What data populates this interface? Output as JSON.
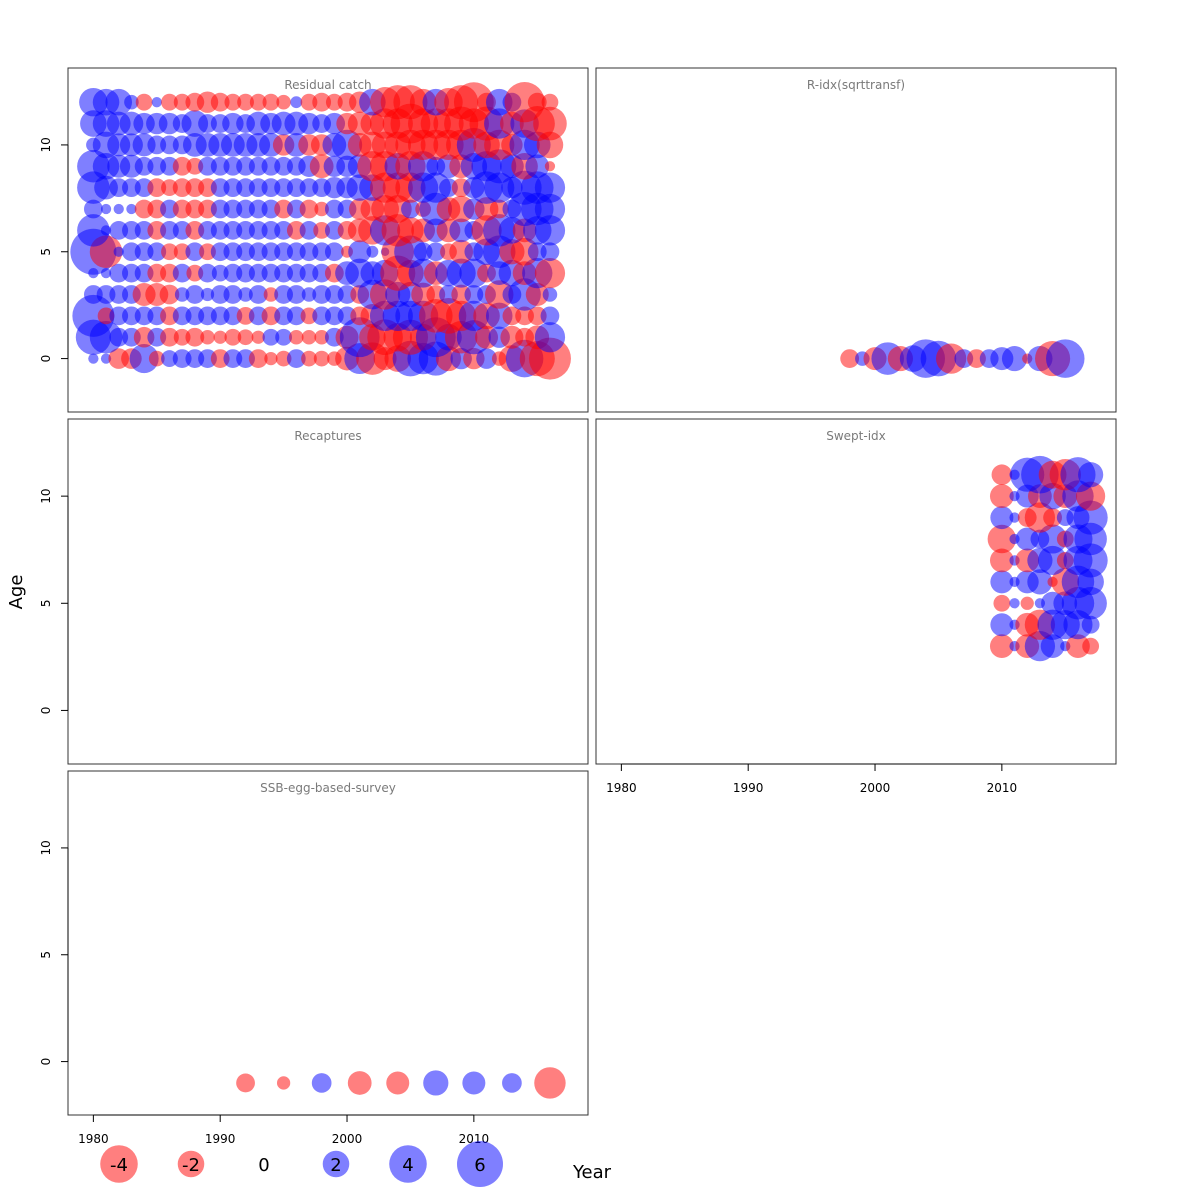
{
  "chart_data": {
    "type": "scatter",
    "style": "bubble",
    "xlabel": "Year",
    "ylabel": "Age",
    "xlim": [
      1978,
      2019
    ],
    "ylim": [
      -2.5,
      13.6
    ],
    "x_ticks": [
      1980,
      1990,
      2000,
      2010
    ],
    "y_ticks": [
      0,
      5,
      10
    ],
    "colors": {
      "negative": "#ff0000",
      "positive": "#0000ff",
      "alpha": 0.5
    },
    "bubble_scale": {
      "max_abs_residual": 6,
      "max_radius_px": 23
    },
    "legend": {
      "placement": "bottom",
      "entries": [
        {
          "label": "-4",
          "value": -4
        },
        {
          "label": "-2",
          "value": -2
        },
        {
          "label": "0",
          "value": 0
        },
        {
          "label": "2",
          "value": 2
        },
        {
          "label": "4",
          "value": 4
        },
        {
          "label": "6",
          "value": 6
        }
      ]
    },
    "panels": [
      {
        "title": "Residual catch",
        "x": [
          1980,
          1981,
          1982,
          1983,
          1984,
          1985,
          1986,
          1987,
          1988,
          1989,
          1990,
          1991,
          1992,
          1993,
          1994,
          1995,
          1996,
          1997,
          1998,
          1999,
          2000,
          2001,
          2002,
          2003,
          2004,
          2005,
          2006,
          2007,
          2008,
          2009,
          2010,
          2011,
          2012,
          2013,
          2014,
          2015,
          2016
        ],
        "ages": [
          0,
          1,
          2,
          3,
          4,
          5,
          6,
          7,
          8,
          9,
          10,
          11,
          12
        ],
        "residuals": [
          [
            0.3,
            0.3,
            -1.2,
            -1.2,
            2.4,
            -0.7,
            0.8,
            1.0,
            1.0,
            1.0,
            -1.0,
            1.0,
            1.0,
            -1.0,
            -0.5,
            -0.7,
            1.0,
            -0.7,
            -0.7,
            -0.6,
            -1.6,
            2.7,
            -3.0,
            -1.5,
            -2.0,
            3.6,
            2.8,
            3.3,
            -1.8,
            1.3,
            -1.3,
            1.2,
            -0.6,
            -2.0,
            4.0,
            -3.5,
            -5.0
          ],
          [
            3.5,
            3.0,
            1.0,
            1.0,
            -1.2,
            1.0,
            -1.0,
            -0.8,
            -1.0,
            -0.6,
            -0.5,
            -0.8,
            -0.7,
            -0.5,
            0.8,
            0.8,
            -0.6,
            -0.6,
            -0.6,
            1.0,
            -1.5,
            4.5,
            -2.0,
            -3.6,
            -2.3,
            -3.5,
            -2.0,
            4.5,
            2.0,
            -3.0,
            3.3,
            -1.5,
            1.3,
            -1.5,
            -1.0,
            -1.6,
            2.6
          ],
          [
            5.0,
            -0.8,
            1.0,
            1.0,
            1.0,
            1.0,
            -1.0,
            1.0,
            1.0,
            1.0,
            1.0,
            1.0,
            -0.9,
            1.0,
            -1.0,
            1.0,
            1.0,
            -0.8,
            1.0,
            1.0,
            1.0,
            -1.0,
            -1.6,
            2.6,
            2.6,
            2.6,
            2.6,
            -3.2,
            -3.6,
            -2.6,
            2.6,
            -2.0,
            2.0,
            -1.0,
            -1.0,
            -1.0,
            1.0
          ],
          [
            1.0,
            1.0,
            1.0,
            1.0,
            -1.5,
            -1.5,
            -1.1,
            0.6,
            1.0,
            0.5,
            1.0,
            1.0,
            0.6,
            1.0,
            -0.6,
            1.0,
            1.0,
            0.6,
            1.0,
            1.0,
            1.0,
            -1.0,
            2.5,
            -2.6,
            1.8,
            1.8,
            -1.6,
            -1.0,
            1.0,
            -1.1,
            1.0,
            1.0,
            -2.3,
            1.0,
            3.0,
            -1.5,
            0.6
          ],
          [
            0.3,
            0.3,
            1.0,
            1.0,
            1.0,
            -1.0,
            -1.0,
            1.0,
            -0.8,
            1.0,
            0.8,
            1.0,
            1.0,
            1.0,
            1.0,
            1.0,
            1.0,
            1.0,
            1.0,
            -1.0,
            1.6,
            2.4,
            1.6,
            2.0,
            -3.5,
            -2.0,
            2.4,
            -1.6,
            2.0,
            2.4,
            2.4,
            -1.0,
            1.6,
            2.0,
            -1.6,
            2.6,
            -2.6
          ],
          [
            6.0,
            -3.0,
            0.3,
            1.0,
            1.0,
            1.0,
            -0.8,
            -0.8,
            1.0,
            -0.8,
            1.0,
            1.0,
            1.0,
            1.0,
            1.0,
            1.0,
            1.0,
            1.0,
            1.0,
            1.0,
            -0.4,
            1.5,
            0.4,
            0.2,
            -3.0,
            3.0,
            1.0,
            1.0,
            -0.8,
            -1.6,
            1.0,
            2.0,
            3.0,
            -1.8,
            -2.2,
            1.0,
            1.0
          ],
          [
            3.0,
            0.3,
            1.0,
            1.0,
            1.0,
            -1.0,
            1.0,
            1.0,
            -1.0,
            1.0,
            1.0,
            1.0,
            1.0,
            1.0,
            1.0,
            1.0,
            -1.0,
            1.0,
            -0.8,
            1.0,
            -1.0,
            -1.6,
            -2.3,
            2.6,
            -3.0,
            -2.0,
            -1.6,
            1.6,
            -1.6,
            1.6,
            1.0,
            -2.6,
            3.0,
            2.0,
            -1.6,
            2.3,
            2.6
          ],
          [
            1.0,
            0.3,
            0.3,
            0.3,
            -1.0,
            -1.0,
            1.0,
            -1.0,
            -1.0,
            -1.0,
            1.0,
            1.0,
            1.0,
            1.0,
            1.0,
            -1.0,
            1.0,
            -1.0,
            -0.6,
            1.0,
            1.0,
            -1.3,
            -1.6,
            -2.2,
            -2.2,
            1.0,
            -0.7,
            3.0,
            -1.6,
            -2.0,
            1.3,
            -1.6,
            -1.0,
            1.0,
            3.3,
            3.0,
            2.6
          ],
          [
            3.0,
            1.6,
            1.0,
            1.0,
            1.0,
            -1.0,
            -0.8,
            -1.0,
            -1.0,
            -1.0,
            1.0,
            1.0,
            1.0,
            1.0,
            1.0,
            1.0,
            1.0,
            1.0,
            1.0,
            1.3,
            1.3,
            2.0,
            2.0,
            -2.6,
            -2.6,
            -2.6,
            2.6,
            2.6,
            1.0,
            -1.0,
            1.3,
            3.0,
            2.6,
            1.3,
            3.3,
            3.0,
            2.6
          ],
          [
            3.0,
            2.0,
            1.5,
            1.5,
            1.0,
            1.0,
            1.0,
            -1.0,
            -0.8,
            1.0,
            1.0,
            1.0,
            1.0,
            1.0,
            1.0,
            1.0,
            1.0,
            1.3,
            -1.6,
            1.3,
            1.3,
            1.6,
            -2.6,
            -2.6,
            2.0,
            -2.6,
            2.6,
            1.0,
            1.6,
            -1.6,
            2.0,
            2.6,
            3.3,
            1.6,
            -2.0,
            1.6,
            -0.3
          ],
          [
            0.6,
            2.0,
            1.5,
            1.5,
            1.5,
            1.0,
            1.0,
            1.0,
            1.6,
            1.6,
            1.6,
            1.6,
            1.6,
            1.6,
            1.6,
            -1.3,
            1.6,
            -1.3,
            -1.3,
            1.6,
            2.6,
            -1.6,
            -2.0,
            -2.0,
            -2.0,
            -2.6,
            -2.6,
            -2.6,
            -2.6,
            -2.6,
            3.3,
            -2.0,
            -2.6,
            -1.3,
            2.6,
            2.0,
            -2.0
          ],
          [
            2.0,
            2.0,
            1.6,
            1.6,
            1.3,
            1.3,
            1.3,
            1.0,
            2.0,
            1.0,
            1.0,
            1.3,
            1.0,
            1.6,
            1.3,
            1.6,
            1.6,
            1.3,
            1.0,
            1.3,
            -1.3,
            -1.6,
            -1.6,
            -2.6,
            -2.6,
            -4.5,
            -2.6,
            -2.6,
            -2.6,
            -3.3,
            -2.6,
            -3.3,
            2.6,
            -1.6,
            2.3,
            -3.5,
            -3.2
          ],
          [
            2.3,
            2.0,
            2.0,
            0.6,
            -0.8,
            0.3,
            -0.8,
            -0.8,
            -1.0,
            -1.3,
            -1.0,
            -0.8,
            -0.8,
            -0.8,
            -0.8,
            -0.6,
            0.4,
            -0.8,
            -1.0,
            -0.8,
            -1.0,
            -1.3,
            2.0,
            -2.6,
            -3.3,
            -3.3,
            -2.0,
            2.0,
            -2.3,
            -3.3,
            -4.5,
            -1.0,
            2.0,
            1.0,
            -4.6,
            -1.0,
            -0.8
          ]
        ]
      },
      {
        "title": "R-idx(sqrttransf)",
        "x": [
          1998,
          1999,
          2000,
          2001,
          2002,
          2003,
          2004,
          2005,
          2006,
          2007,
          2008,
          2009,
          2010,
          2011,
          2012,
          2013,
          2014,
          2015
        ],
        "ages": [
          0
        ],
        "residuals": [
          [
            -1.0,
            0.6,
            -1.5,
            3.0,
            -1.8,
            2.0,
            4.2,
            3.6,
            -2.6,
            1.0,
            -1.0,
            1.0,
            1.5,
            1.8,
            -0.3,
            1.8,
            -3.5,
            4.2
          ]
        ]
      },
      {
        "title": "Recaptures",
        "x": [],
        "ages": [],
        "residuals": []
      },
      {
        "title": "Swept-idx",
        "x": [
          2010,
          2011,
          2012,
          2013,
          2014,
          2015,
          2016,
          2017
        ],
        "ages": [
          3,
          4,
          5,
          6,
          7,
          8,
          9,
          10,
          11
        ],
        "residuals": [
          [
            -1.6,
            0.3,
            -1.6,
            2.6,
            1.6,
            0.3,
            -1.6,
            -0.8
          ],
          [
            1.5,
            0.3,
            -1.6,
            -2.6,
            2.6,
            2.4,
            2.4,
            0.9
          ],
          [
            -0.8,
            0.3,
            -0.5,
            0.3,
            1.5,
            1.6,
            3.0,
            3.0
          ],
          [
            1.5,
            0.3,
            1.5,
            1.8,
            -0.3,
            -2.2,
            3.0,
            2.0
          ],
          [
            -1.6,
            0.3,
            -1.6,
            1.8,
            2.4,
            -0.8,
            2.4,
            3.3
          ],
          [
            -2.3,
            0.3,
            1.5,
            1.0,
            2.4,
            -0.8,
            2.4,
            3.0
          ],
          [
            1.5,
            0.3,
            -1.0,
            -2.6,
            -1.0,
            0.8,
            1.5,
            3.3
          ],
          [
            -1.6,
            0.3,
            1.5,
            -1.6,
            2.0,
            -1.6,
            2.8,
            -2.4
          ],
          [
            -1.2,
            0.3,
            3.3,
            4.0,
            -2.2,
            -2.8,
            3.5,
            1.8
          ]
        ]
      },
      {
        "title": "SSB-egg-based-survey",
        "x": [
          1992,
          1995,
          1998,
          2001,
          2004,
          2007,
          2010,
          2013,
          2016
        ],
        "ages": [
          -1
        ],
        "residuals": [
          [
            -1.0,
            -0.5,
            1.1,
            -1.6,
            -1.5,
            1.8,
            1.5,
            1.1,
            -2.8
          ]
        ]
      }
    ]
  }
}
